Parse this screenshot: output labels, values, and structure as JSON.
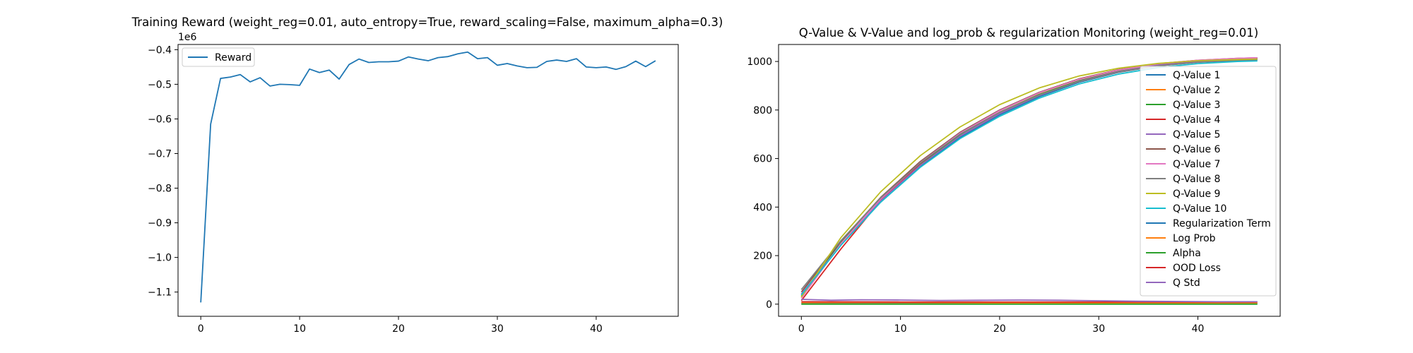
{
  "chart_data": [
    {
      "type": "line",
      "title": "Training Reward (weight_reg=0.01, auto_entropy=True, reward_scaling=False, maximum_alpha=0.3)",
      "xlabel": "",
      "ylabel": "",
      "offset_text": "1e6",
      "xlim": [
        -2.3,
        48.3
      ],
      "ylim": [
        -1.17,
        -0.385
      ],
      "xticks": [
        0,
        10,
        20,
        30,
        40
      ],
      "xtick_labels": [
        "0",
        "10",
        "20",
        "30",
        "40"
      ],
      "yticks": [
        -1.1,
        -1.0,
        -0.9,
        -0.8,
        -0.7,
        -0.6,
        -0.5,
        -0.4
      ],
      "ytick_labels": [
        "−1.1",
        "−1.0",
        "−0.9",
        "−0.8",
        "−0.7",
        "−0.6",
        "−0.5",
        "−0.4"
      ],
      "grid": false,
      "legend": "upper left",
      "series": [
        {
          "name": "Reward",
          "color": "#1f77b4",
          "x": [
            0,
            1,
            2,
            3,
            4,
            5,
            6,
            7,
            8,
            9,
            10,
            11,
            12,
            13,
            14,
            15,
            16,
            17,
            18,
            19,
            20,
            21,
            22,
            23,
            24,
            25,
            26,
            27,
            28,
            29,
            30,
            31,
            32,
            33,
            34,
            35,
            36,
            37,
            38,
            39,
            40,
            41,
            42,
            43,
            44,
            45,
            46
          ],
          "values": [
            -1.13,
            -0.615,
            -0.483,
            -0.479,
            -0.472,
            -0.493,
            -0.481,
            -0.505,
            -0.5,
            -0.501,
            -0.503,
            -0.456,
            -0.466,
            -0.459,
            -0.485,
            -0.443,
            -0.427,
            -0.437,
            -0.435,
            -0.435,
            -0.433,
            -0.421,
            -0.427,
            -0.432,
            -0.423,
            -0.42,
            -0.412,
            -0.407,
            -0.426,
            -0.423,
            -0.445,
            -0.44,
            -0.447,
            -0.452,
            -0.451,
            -0.434,
            -0.43,
            -0.434,
            -0.426,
            -0.45,
            -0.452,
            -0.45,
            -0.457,
            -0.449,
            -0.433,
            -0.449,
            -0.432
          ]
        }
      ]
    },
    {
      "type": "line",
      "title": "Q-Value & V-Value and log_prob & regularization Monitoring (weight_reg=0.01)",
      "xlabel": "",
      "ylabel": "",
      "xlim": [
        -2.3,
        48.3
      ],
      "ylim": [
        -50,
        1070
      ],
      "xticks": [
        0,
        10,
        20,
        30,
        40
      ],
      "xtick_labels": [
        "0",
        "10",
        "20",
        "30",
        "40"
      ],
      "yticks": [
        0,
        200,
        400,
        600,
        800,
        1000
      ],
      "ytick_labels": [
        "0",
        "200",
        "400",
        "600",
        "800",
        "1000"
      ],
      "grid": false,
      "legend": "right",
      "series": [
        {
          "name": "Q-Value 1",
          "color": "#1f77b4",
          "x": [
            0,
            4,
            8,
            12,
            16,
            20,
            24,
            28,
            32,
            36,
            40,
            44,
            46
          ],
          "values": [
            40,
            248,
            422,
            568,
            687,
            780,
            855,
            914,
            955,
            982,
            997,
            1004,
            1006
          ]
        },
        {
          "name": "Q-Value 2",
          "color": "#ff7f0e",
          "x": [
            0,
            4,
            8,
            12,
            16,
            20,
            24,
            28,
            32,
            36,
            40,
            44,
            46
          ],
          "values": [
            28,
            258,
            437,
            585,
            705,
            797,
            870,
            925,
            963,
            988,
            1002,
            1010,
            1012
          ]
        },
        {
          "name": "Q-Value 3",
          "color": "#2ca02c",
          "x": [
            0,
            4,
            8,
            12,
            16,
            20,
            24,
            28,
            32,
            36,
            40,
            44,
            46
          ],
          "values": [
            33,
            255,
            432,
            578,
            698,
            790,
            864,
            920,
            959,
            985,
            1000,
            1008,
            1010
          ]
        },
        {
          "name": "Q-Value 4",
          "color": "#d62728",
          "x": [
            0,
            4,
            8,
            12,
            16,
            20,
            24,
            28,
            32,
            36,
            40,
            44,
            46
          ],
          "values": [
            15,
            228,
            427,
            580,
            702,
            797,
            872,
            928,
            966,
            991,
            1005,
            1013,
            1015
          ]
        },
        {
          "name": "Q-Value 5",
          "color": "#9467bd",
          "x": [
            0,
            4,
            8,
            12,
            16,
            20,
            24,
            28,
            32,
            36,
            40,
            44,
            46
          ],
          "values": [
            42,
            246,
            425,
            572,
            692,
            785,
            860,
            918,
            958,
            985,
            1000,
            1008,
            1010
          ]
        },
        {
          "name": "Q-Value 6",
          "color": "#8c564b",
          "x": [
            0,
            4,
            8,
            12,
            16,
            20,
            24,
            28,
            32,
            36,
            40,
            44,
            46
          ],
          "values": [
            50,
            260,
            440,
            588,
            708,
            800,
            873,
            928,
            966,
            990,
            1004,
            1012,
            1014
          ]
        },
        {
          "name": "Q-Value 7",
          "color": "#e377c2",
          "x": [
            0,
            4,
            8,
            12,
            16,
            20,
            24,
            28,
            32,
            36,
            40,
            44,
            46
          ],
          "values": [
            25,
            250,
            433,
            583,
            704,
            797,
            871,
            926,
            965,
            990,
            1005,
            1013,
            1015
          ]
        },
        {
          "name": "Q-Value 8",
          "color": "#7f7f7f",
          "x": [
            0,
            4,
            8,
            12,
            16,
            20,
            24,
            28,
            32,
            36,
            40,
            44,
            46
          ],
          "values": [
            60,
            262,
            438,
            582,
            700,
            790,
            862,
            917,
            956,
            982,
            997,
            1005,
            1007
          ]
        },
        {
          "name": "Q-Value 9",
          "color": "#bcbd22",
          "x": [
            0,
            4,
            8,
            12,
            16,
            20,
            24,
            28,
            32,
            36,
            40,
            44,
            46
          ],
          "values": [
            30,
            275,
            463,
            612,
            730,
            822,
            891,
            940,
            972,
            992,
            1003,
            1008,
            1010
          ]
        },
        {
          "name": "Q-Value 10",
          "color": "#17becf",
          "x": [
            0,
            4,
            8,
            12,
            16,
            20,
            24,
            28,
            32,
            36,
            40,
            44,
            46
          ],
          "values": [
            38,
            243,
            420,
            564,
            682,
            774,
            849,
            907,
            948,
            975,
            991,
            1000,
            1002
          ]
        },
        {
          "name": "Regularization Term",
          "color": "#1f77b4",
          "x": [
            0,
            10,
            20,
            30,
            40,
            46
          ],
          "values": [
            2,
            2,
            2,
            2,
            2,
            2
          ]
        },
        {
          "name": "Log Prob",
          "color": "#ff7f0e",
          "x": [
            0,
            10,
            20,
            30,
            40,
            46
          ],
          "values": [
            6,
            6,
            5,
            5,
            5,
            5
          ]
        },
        {
          "name": "Alpha",
          "color": "#2ca02c",
          "x": [
            0,
            10,
            20,
            30,
            40,
            46
          ],
          "values": [
            0,
            0,
            0,
            0,
            0,
            0
          ]
        },
        {
          "name": "OOD Loss",
          "color": "#d62728",
          "x": [
            0,
            10,
            20,
            30,
            40,
            46
          ],
          "values": [
            10,
            9,
            9,
            9,
            9,
            9
          ]
        },
        {
          "name": "Q Std",
          "color": "#9467bd",
          "x": [
            0,
            3,
            6,
            10,
            14,
            18,
            22,
            26,
            30,
            34,
            38,
            42,
            46
          ],
          "values": [
            20,
            16,
            18,
            17,
            15,
            16,
            17,
            16,
            14,
            12,
            11,
            10,
            10
          ]
        }
      ]
    }
  ]
}
